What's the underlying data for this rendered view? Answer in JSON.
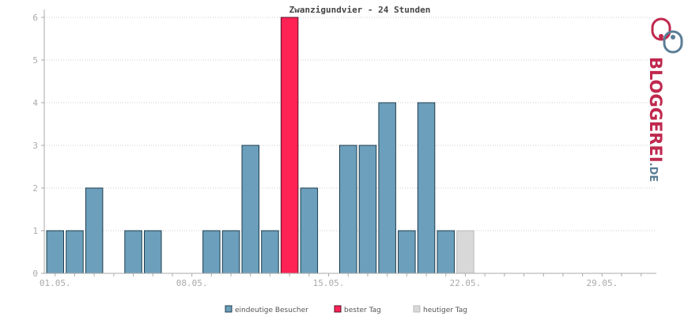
{
  "chart_data": {
    "type": "bar",
    "title": "Zwanzigundvier - 24 Stunden",
    "x_tick_labels": [
      "01.05.",
      "08.05.",
      "15.05.",
      "22.05.",
      "29.05."
    ],
    "x_tick_days": [
      1,
      8,
      15,
      22,
      29
    ],
    "ylim": [
      0,
      6
    ],
    "yticks": [
      0,
      1,
      2,
      3,
      4,
      5,
      6
    ],
    "grid": true,
    "days": [
      1,
      2,
      3,
      4,
      5,
      6,
      7,
      8,
      9,
      10,
      11,
      12,
      13,
      14,
      15,
      16,
      17,
      18,
      19,
      20,
      21,
      22,
      23,
      24,
      25,
      26,
      27,
      28,
      29,
      30,
      31
    ],
    "values": [
      1,
      1,
      2,
      0,
      1,
      1,
      0,
      0,
      1,
      1,
      3,
      1,
      6,
      2,
      0,
      3,
      3,
      4,
      1,
      4,
      1,
      1,
      0,
      0,
      0,
      0,
      0,
      0,
      0,
      0,
      0
    ],
    "best_day": 13,
    "today": 22,
    "legend": [
      {
        "label": "eindeutige Besucher",
        "color": "#6b9fbb"
      },
      {
        "label": "bester Tag",
        "color": "#ff2255"
      },
      {
        "label": "heutiger Tag",
        "color": "#d8d8d8"
      }
    ],
    "legend_position": "bottom"
  },
  "logo": {
    "main": "BLOGGEREI",
    "suffix": ".DE",
    "color_main": "#c0284d",
    "color_accent": "#5a7e95"
  }
}
